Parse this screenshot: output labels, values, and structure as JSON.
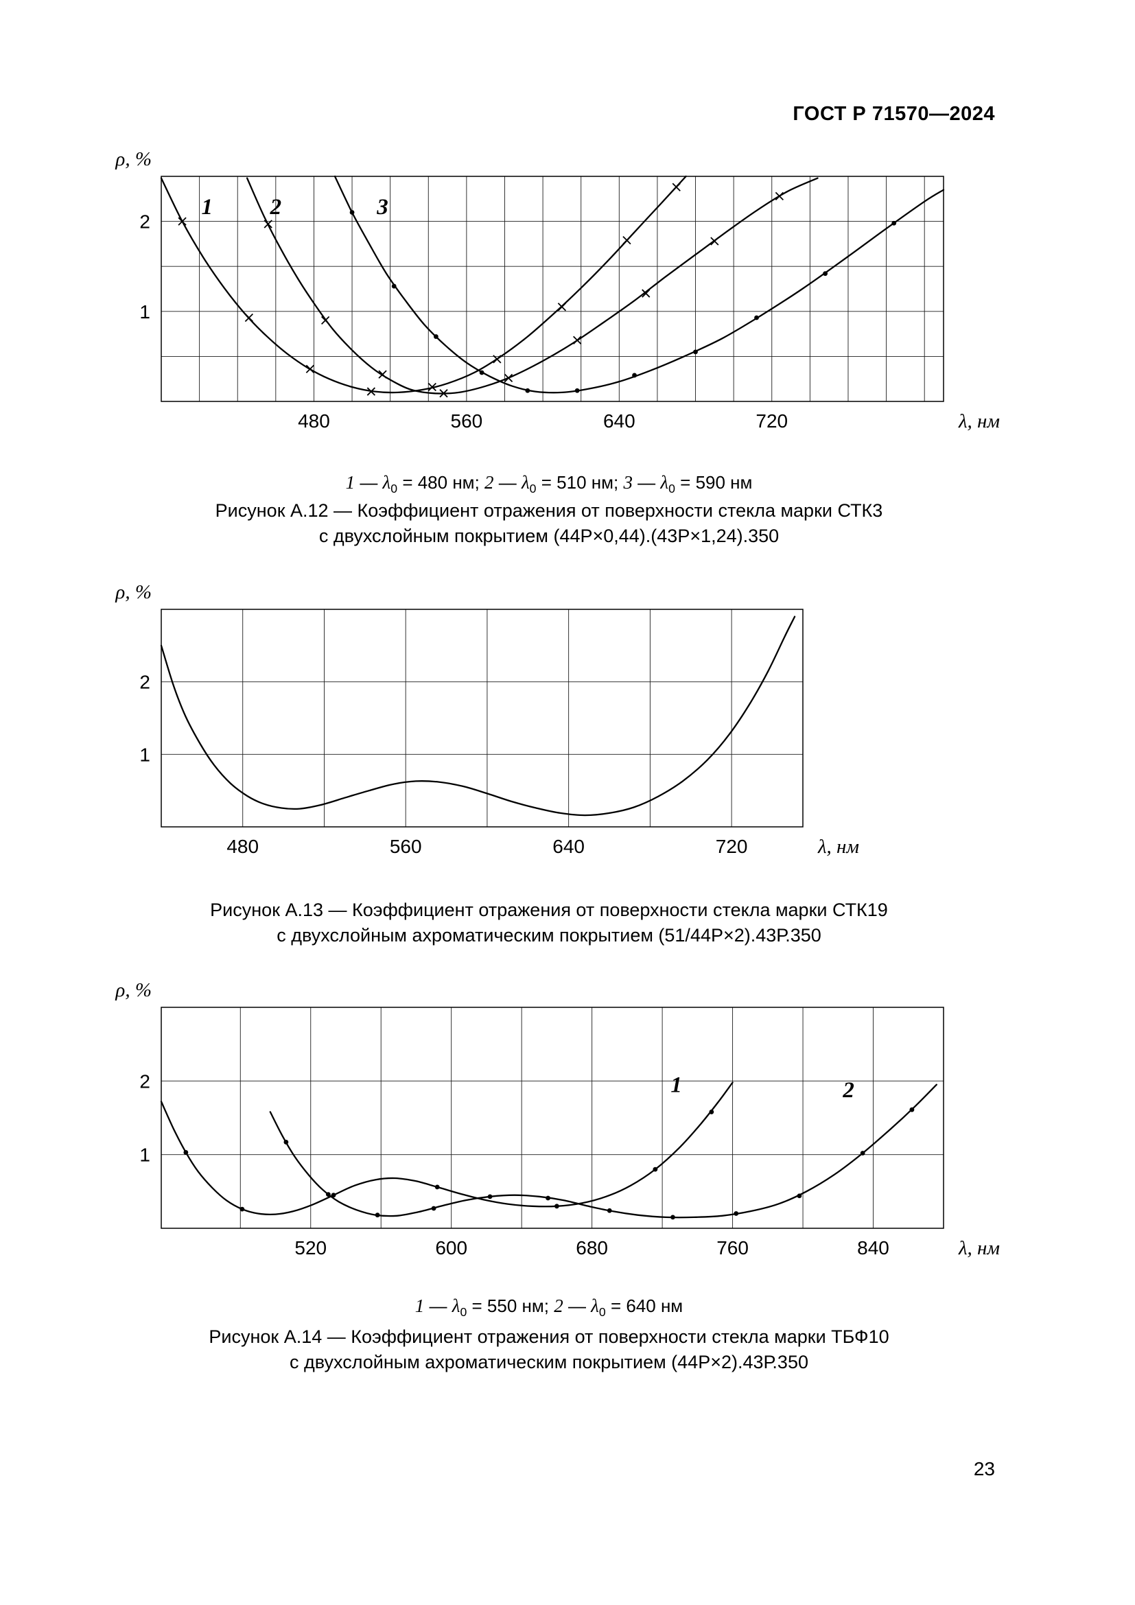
{
  "page": {
    "header": "ГОСТ Р 71570—2024",
    "number": "23"
  },
  "figures": [
    {
      "id": "a12",
      "legend": {
        "symbol": "λ",
        "sub": "0",
        "items": [
          {
            "series": "1",
            "value": "480 нм"
          },
          {
            "series": "2",
            "value": "510 нм"
          },
          {
            "series": "3",
            "value": "590 нм"
          }
        ]
      },
      "caption_line1": "Рисунок А.12 — Коэффициент отражения от поверхности стекла марки СТК3",
      "caption_line2": "с двухслойным покрытием (44Р×0,44).(43Р×1,24).350"
    },
    {
      "id": "a13",
      "caption_line1": "Рисунок А.13 — Коэффициент отражения от поверхности стекла марки СТК19",
      "caption_line2": "с двухслойным ахроматическим покрытием (51/44Р×2).43Р.350"
    },
    {
      "id": "a14",
      "legend": {
        "symbol": "λ",
        "sub": "0",
        "items": [
          {
            "series": "1",
            "value": "550 нм"
          },
          {
            "series": "2",
            "value": "640 нм"
          }
        ]
      },
      "caption_line1": "Рисунок А.14 — Коэффициент отражения от поверхности стекла марки ТБФ10",
      "caption_line2": "с двухслойным ахроматическим покрытием (44Р×2).43Р.350"
    }
  ],
  "chart_data": [
    {
      "id": "a12",
      "type": "line",
      "title": "Коэффициент отражения стекла СТК3 с двухслойным покрытием",
      "xlabel": "λ, нм",
      "ylabel": "ρ, %",
      "x_range": [
        400,
        810
      ],
      "y_range": [
        0,
        2.5
      ],
      "x_grid": {
        "start": 420,
        "step": 20,
        "end": 800
      },
      "y_grid": {
        "start": 0.5,
        "step": 0.5,
        "end": 2.4
      },
      "x_ticks": [
        480,
        560,
        640,
        720
      ],
      "y_ticks": [
        1,
        2
      ],
      "grid": true,
      "series": [
        {
          "name": "1",
          "lambda0_nm": 480,
          "marker": "x",
          "label": "1",
          "label_at": [
            424,
            2.08
          ],
          "points": [
            [
              400,
              2.48
            ],
            [
              411,
              2.0
            ],
            [
              422,
              1.6
            ],
            [
              433,
              1.26
            ],
            [
              444,
              0.97
            ],
            [
              455,
              0.73
            ],
            [
              466,
              0.53
            ],
            [
              477,
              0.37
            ],
            [
              488,
              0.25
            ],
            [
              500,
              0.16
            ],
            [
              512,
              0.11
            ],
            [
              524,
              0.1
            ],
            [
              537,
              0.13
            ],
            [
              550,
              0.2
            ],
            [
              564,
              0.32
            ],
            [
              578,
              0.5
            ],
            [
              592,
              0.72
            ],
            [
              606,
              0.98
            ],
            [
              620,
              1.26
            ],
            [
              634,
              1.56
            ],
            [
              648,
              1.88
            ],
            [
              662,
              2.2
            ],
            [
              675,
              2.5
            ]
          ],
          "marker_points": [
            [
              411,
              2.0
            ],
            [
              446,
              0.93
            ],
            [
              478,
              0.36
            ],
            [
              510,
              0.11
            ],
            [
              542,
              0.16
            ],
            [
              576,
              0.47
            ],
            [
              610,
              1.05
            ],
            [
              644,
              1.79
            ],
            [
              670,
              2.38
            ]
          ]
        },
        {
          "name": "2",
          "lambda0_nm": 510,
          "marker": "x",
          "label": "2",
          "label_at": [
            460,
            2.08
          ],
          "points": [
            [
              445,
              2.48
            ],
            [
              454,
              2.05
            ],
            [
              463,
              1.68
            ],
            [
              472,
              1.35
            ],
            [
              481,
              1.06
            ],
            [
              490,
              0.8
            ],
            [
              500,
              0.57
            ],
            [
              510,
              0.38
            ],
            [
              520,
              0.24
            ],
            [
              531,
              0.13
            ],
            [
              543,
              0.09
            ],
            [
              556,
              0.1
            ],
            [
              570,
              0.17
            ],
            [
              584,
              0.28
            ],
            [
              600,
              0.45
            ],
            [
              616,
              0.65
            ],
            [
              632,
              0.88
            ],
            [
              648,
              1.12
            ],
            [
              664,
              1.38
            ],
            [
              680,
              1.63
            ],
            [
              696,
              1.88
            ],
            [
              712,
              2.12
            ],
            [
              728,
              2.33
            ],
            [
              744,
              2.48
            ]
          ],
          "marker_points": [
            [
              456,
              1.97
            ],
            [
              486,
              0.9
            ],
            [
              516,
              0.3
            ],
            [
              548,
              0.09
            ],
            [
              582,
              0.26
            ],
            [
              618,
              0.68
            ],
            [
              654,
              1.2
            ],
            [
              690,
              1.78
            ],
            [
              724,
              2.28
            ]
          ]
        },
        {
          "name": "3",
          "lambda0_nm": 590,
          "marker": "dot",
          "label": "3",
          "label_at": [
            516,
            2.08
          ],
          "points": [
            [
              491,
              2.5
            ],
            [
              500,
              2.1
            ],
            [
              509,
              1.75
            ],
            [
              518,
              1.42
            ],
            [
              528,
              1.12
            ],
            [
              538,
              0.85
            ],
            [
              549,
              0.62
            ],
            [
              560,
              0.43
            ],
            [
              572,
              0.28
            ],
            [
              584,
              0.17
            ],
            [
              596,
              0.11
            ],
            [
              610,
              0.1
            ],
            [
              624,
              0.14
            ],
            [
              640,
              0.22
            ],
            [
              656,
              0.34
            ],
            [
              674,
              0.5
            ],
            [
              694,
              0.7
            ],
            [
              714,
              0.95
            ],
            [
              736,
              1.25
            ],
            [
              758,
              1.58
            ],
            [
              780,
              1.92
            ],
            [
              800,
              2.22
            ],
            [
              810,
              2.35
            ]
          ],
          "marker_points": [
            [
              500,
              2.1
            ],
            [
              522,
              1.28
            ],
            [
              544,
              0.72
            ],
            [
              568,
              0.32
            ],
            [
              592,
              0.12
            ],
            [
              618,
              0.12
            ],
            [
              648,
              0.29
            ],
            [
              680,
              0.55
            ],
            [
              712,
              0.93
            ],
            [
              748,
              1.42
            ],
            [
              784,
              1.98
            ]
          ]
        }
      ]
    },
    {
      "id": "a13",
      "type": "line",
      "title": "Коэффициент отражения стекла СТК19 с двухслойным ахроматическим покрытием",
      "xlabel": "λ, нм",
      "ylabel": "ρ, %",
      "x_range": [
        440,
        755
      ],
      "y_range": [
        0,
        3
      ],
      "x_grid": {
        "start": 480,
        "step": 40,
        "end": 720
      },
      "y_grid": {
        "start": 1,
        "step": 1,
        "end": 2.5
      },
      "x_ticks": [
        480,
        560,
        640,
        720
      ],
      "y_ticks": [
        1,
        2
      ],
      "grid": true,
      "series": [
        {
          "name": "СТК19",
          "marker": "none",
          "points": [
            [
              440,
              2.5
            ],
            [
              446,
              1.95
            ],
            [
              452,
              1.52
            ],
            [
              459,
              1.15
            ],
            [
              466,
              0.85
            ],
            [
              474,
              0.6
            ],
            [
              482,
              0.43
            ],
            [
              490,
              0.32
            ],
            [
              499,
              0.26
            ],
            [
              508,
              0.25
            ],
            [
              518,
              0.3
            ],
            [
              530,
              0.4
            ],
            [
              542,
              0.5
            ],
            [
              554,
              0.59
            ],
            [
              565,
              0.63
            ],
            [
              576,
              0.62
            ],
            [
              588,
              0.56
            ],
            [
              600,
              0.46
            ],
            [
              612,
              0.35
            ],
            [
              624,
              0.26
            ],
            [
              636,
              0.19
            ],
            [
              648,
              0.16
            ],
            [
              660,
              0.19
            ],
            [
              672,
              0.27
            ],
            [
              684,
              0.42
            ],
            [
              696,
              0.63
            ],
            [
              708,
              0.92
            ],
            [
              719,
              1.28
            ],
            [
              729,
              1.7
            ],
            [
              738,
              2.15
            ],
            [
              746,
              2.62
            ],
            [
              751,
              2.9
            ]
          ]
        }
      ]
    },
    {
      "id": "a14",
      "type": "line",
      "title": "Коэффициент отражения стекла ТБФ10 с двухслойным ахроматическим покрытием",
      "xlabel": "λ, нм",
      "ylabel": "ρ, %",
      "x_range": [
        435,
        880
      ],
      "y_range": [
        0,
        3
      ],
      "x_grid": {
        "start": 480,
        "step": 40,
        "end": 840
      },
      "y_grid": {
        "start": 1,
        "step": 1,
        "end": 2.5
      },
      "x_ticks": [
        520,
        600,
        680,
        760,
        840
      ],
      "y_ticks": [
        1,
        2
      ],
      "grid": true,
      "series": [
        {
          "name": "1",
          "lambda0_nm": 550,
          "marker": "dot",
          "label": "1",
          "label_at": [
            728,
            1.85
          ],
          "points": [
            [
              435,
              1.72
            ],
            [
              442,
              1.35
            ],
            [
              449,
              1.03
            ],
            [
              456,
              0.77
            ],
            [
              464,
              0.55
            ],
            [
              472,
              0.38
            ],
            [
              481,
              0.26
            ],
            [
              490,
              0.2
            ],
            [
              500,
              0.19
            ],
            [
              510,
              0.23
            ],
            [
              521,
              0.32
            ],
            [
              533,
              0.45
            ],
            [
              545,
              0.58
            ],
            [
              557,
              0.66
            ],
            [
              568,
              0.68
            ],
            [
              580,
              0.64
            ],
            [
              592,
              0.56
            ],
            [
              605,
              0.47
            ],
            [
              618,
              0.39
            ],
            [
              632,
              0.33
            ],
            [
              646,
              0.3
            ],
            [
              660,
              0.3
            ],
            [
              674,
              0.34
            ],
            [
              688,
              0.43
            ],
            [
              702,
              0.58
            ],
            [
              716,
              0.8
            ],
            [
              730,
              1.1
            ],
            [
              742,
              1.42
            ],
            [
              752,
              1.72
            ],
            [
              760,
              1.98
            ]
          ],
          "marker_points": [
            [
              449,
              1.03
            ],
            [
              481,
              0.26
            ],
            [
              533,
              0.45
            ],
            [
              592,
              0.56
            ],
            [
              660,
              0.3
            ],
            [
              716,
              0.8
            ],
            [
              748,
              1.58
            ]
          ]
        },
        {
          "name": "2",
          "lambda0_nm": 640,
          "marker": "dot",
          "label": "2",
          "label_at": [
            826,
            1.78
          ],
          "points": [
            [
              497,
              1.58
            ],
            [
              504,
              1.25
            ],
            [
              511,
              0.97
            ],
            [
              519,
              0.72
            ],
            [
              527,
              0.52
            ],
            [
              536,
              0.36
            ],
            [
              546,
              0.25
            ],
            [
              557,
              0.18
            ],
            [
              569,
              0.17
            ],
            [
              581,
              0.22
            ],
            [
              594,
              0.3
            ],
            [
              608,
              0.38
            ],
            [
              622,
              0.43
            ],
            [
              636,
              0.45
            ],
            [
              650,
              0.43
            ],
            [
              664,
              0.38
            ],
            [
              678,
              0.3
            ],
            [
              692,
              0.23
            ],
            [
              706,
              0.18
            ],
            [
              722,
              0.15
            ],
            [
              738,
              0.15
            ],
            [
              754,
              0.17
            ],
            [
              770,
              0.23
            ],
            [
              786,
              0.33
            ],
            [
              802,
              0.5
            ],
            [
              818,
              0.73
            ],
            [
              834,
              1.02
            ],
            [
              850,
              1.35
            ],
            [
              864,
              1.66
            ],
            [
              876,
              1.95
            ]
          ],
          "marker_points": [
            [
              506,
              1.17
            ],
            [
              530,
              0.46
            ],
            [
              558,
              0.18
            ],
            [
              590,
              0.27
            ],
            [
              622,
              0.43
            ],
            [
              655,
              0.41
            ],
            [
              690,
              0.24
            ],
            [
              726,
              0.15
            ],
            [
              762,
              0.2
            ],
            [
              798,
              0.44
            ],
            [
              834,
              1.02
            ],
            [
              862,
              1.61
            ]
          ]
        }
      ]
    }
  ]
}
